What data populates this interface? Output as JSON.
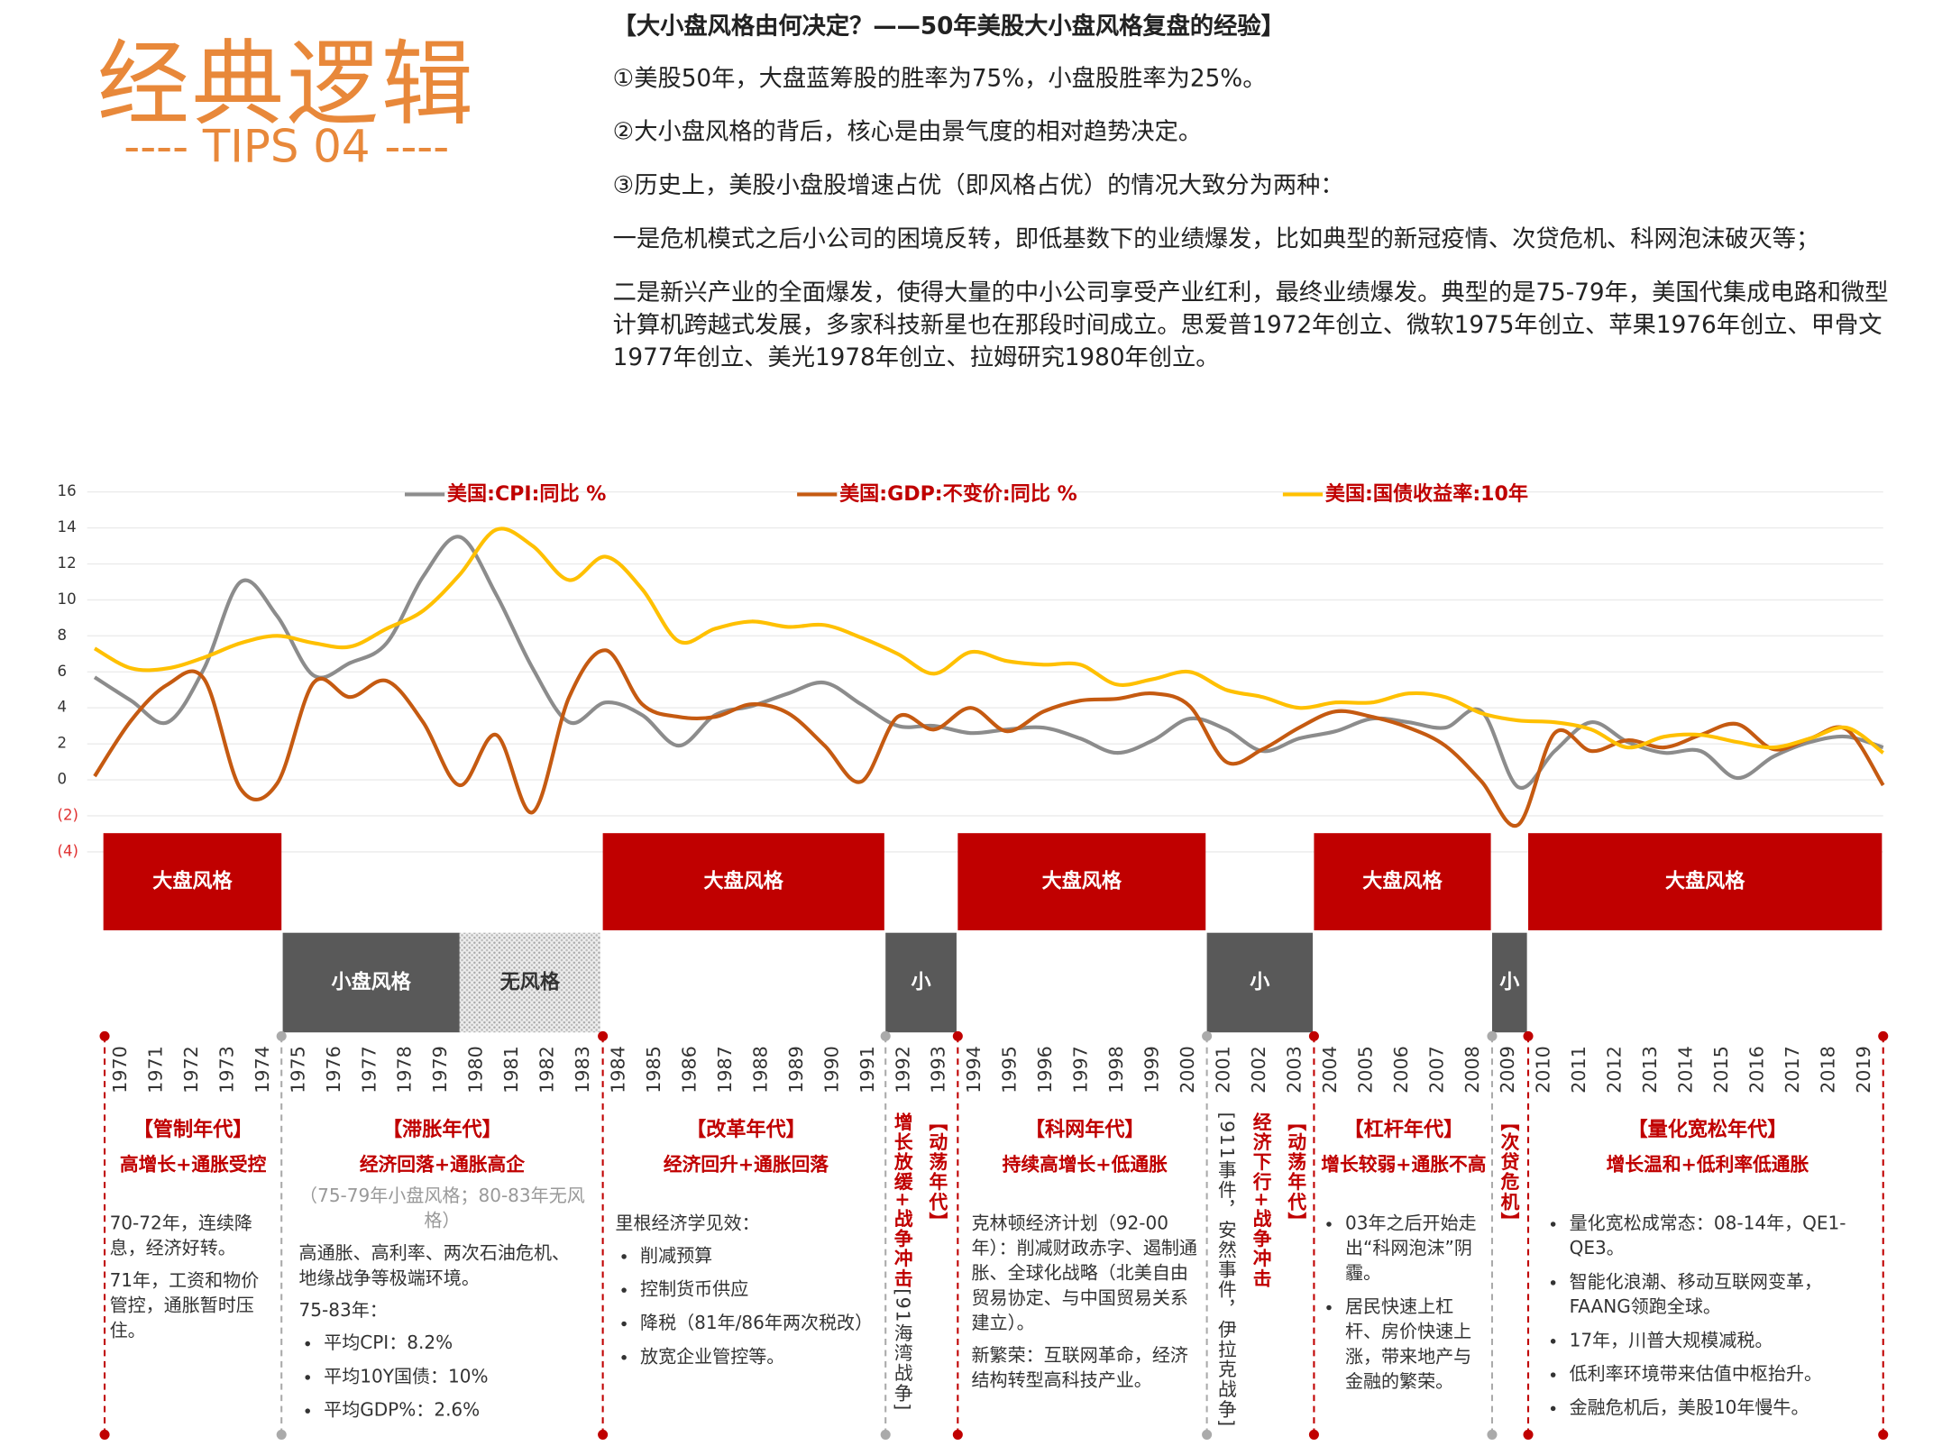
{
  "header": {
    "title": "经典逻辑",
    "subtitle": "---- TIPS 04 ----"
  },
  "article": {
    "heading": "【大小盘风格由何决定？——50年美股大小盘风格复盘的经验】",
    "paragraphs": [
      "①美股50年，大盘蓝筹股的胜率为75%，小盘股胜率为25%。",
      "②大小盘风格的背后，核心是由景气度的相对趋势决定。",
      "③历史上，美股小盘股增速占优（即风格占优）的情况大致分为两种：",
      "一是危机模式之后小公司的困境反转，即低基数下的业绩爆发，比如典型的新冠疫情、次贷危机、科网泡沫破灭等；",
      "二是新兴产业的全面爆发，使得大量的中小公司享受产业红利，最终业绩爆发。典型的是75-79年，美国代集成电路和微型计算机跨越式发展，多家科技新星也在那段时间成立。思爱普1972年创立、微软1975年创立、苹果1976年创立、甲骨文1977年创立、美光1978年创立、拉姆研究1980年创立。"
    ]
  },
  "chart_data": {
    "type": "line",
    "x": [
      1970,
      1971,
      1972,
      1973,
      1974,
      1975,
      1976,
      1977,
      1978,
      1979,
      1980,
      1981,
      1982,
      1983,
      1984,
      1985,
      1986,
      1987,
      1988,
      1989,
      1990,
      1991,
      1992,
      1993,
      1994,
      1995,
      1996,
      1997,
      1998,
      1999,
      2000,
      2001,
      2002,
      2003,
      2004,
      2005,
      2006,
      2007,
      2008,
      2009,
      2010,
      2011,
      2012,
      2013,
      2014,
      2015,
      2016,
      2017,
      2018,
      2019
    ],
    "xlim": [
      1970,
      2019
    ],
    "ylim": [
      -4,
      16
    ],
    "yticks": [
      16,
      14,
      12,
      10,
      8,
      6,
      4,
      2,
      0,
      {
        "value": -2,
        "label": "(2)"
      },
      {
        "value": -4,
        "label": "(4)"
      }
    ],
    "grid": true,
    "legend": "top",
    "series": [
      {
        "name": "美国:CPI:同比 %",
        "color": "#8c8c8c",
        "values": [
          5.7,
          4.4,
          3.2,
          6.2,
          11.0,
          9.1,
          5.8,
          6.5,
          7.6,
          11.3,
          13.5,
          10.3,
          6.2,
          3.2,
          4.3,
          3.6,
          1.9,
          3.6,
          4.1,
          4.8,
          5.4,
          4.2,
          3.0,
          3.0,
          2.6,
          2.8,
          2.9,
          2.3,
          1.5,
          2.2,
          3.4,
          2.8,
          1.6,
          2.3,
          2.7,
          3.4,
          3.2,
          2.9,
          3.8,
          -0.4,
          1.6,
          3.2,
          2.1,
          1.5,
          1.6,
          0.1,
          1.3,
          2.1,
          2.4,
          1.8
        ]
      },
      {
        "name": "美国:GDP:不变价:同比 %",
        "color": "#c55a11",
        "values": [
          0.2,
          3.3,
          5.3,
          5.6,
          -0.5,
          -0.2,
          5.4,
          4.6,
          5.5,
          3.2,
          -0.3,
          2.5,
          -1.8,
          4.6,
          7.2,
          4.2,
          3.5,
          3.5,
          4.2,
          3.7,
          1.9,
          -0.1,
          3.5,
          2.8,
          4.0,
          2.7,
          3.8,
          4.4,
          4.5,
          4.8,
          4.1,
          1.0,
          1.7,
          2.9,
          3.8,
          3.5,
          2.9,
          1.9,
          -0.1,
          -2.5,
          2.6,
          1.6,
          2.2,
          1.8,
          2.5,
          3.1,
          1.7,
          2.3,
          2.8,
          -0.3
        ]
      },
      {
        "name": "美国:国债收益率:10年",
        "color": "#ffc000",
        "values": [
          7.3,
          6.2,
          6.2,
          6.8,
          7.6,
          8.0,
          7.6,
          7.4,
          8.4,
          9.4,
          11.4,
          13.9,
          13.0,
          11.1,
          12.4,
          10.6,
          7.7,
          8.4,
          8.8,
          8.5,
          8.6,
          7.9,
          7.0,
          5.9,
          7.1,
          6.6,
          6.4,
          6.4,
          5.3,
          5.6,
          6.0,
          5.0,
          4.6,
          4.0,
          4.3,
          4.3,
          4.8,
          4.6,
          3.7,
          3.3,
          3.2,
          2.8,
          1.8,
          2.4,
          2.5,
          2.1,
          1.8,
          2.3,
          2.9,
          1.5
        ]
      }
    ]
  },
  "timeline": {
    "blocks": [
      "大盘风格",
      "小盘风格",
      "无风格",
      "大盘风格",
      "小",
      "大盘风格",
      "小",
      "大盘风格",
      "小",
      "大盘风格"
    ],
    "years": [
      "1970",
      "1971",
      "1972",
      "1973",
      "1974",
      "1975",
      "1976",
      "1977",
      "1978",
      "1979",
      "1980",
      "1981",
      "1982",
      "1983",
      "1984",
      "1985",
      "1986",
      "1987",
      "1988",
      "1989",
      "1990",
      "1991",
      "1992",
      "1993",
      "1994",
      "1995",
      "1996",
      "1997",
      "1998",
      "1999",
      "2000",
      "2001",
      "2002",
      "2003",
      "2004",
      "2005",
      "2006",
      "2007",
      "2008",
      "2009",
      "2010",
      "2011",
      "2012",
      "2013",
      "2014",
      "2015",
      "2016",
      "2017",
      "2018",
      "2019"
    ],
    "eras": [
      {
        "title": "【管制年代】",
        "subtitle": "高增长+通胀受控",
        "paragraphs": [
          "70-72年，连续降息，经济好转。",
          "71年，工资和物价管控，通胀暂时压住。"
        ]
      },
      {
        "title": "【滞胀年代】",
        "subtitle": "经济回落+通胀高企",
        "note": "（75-79年小盘风格；80-83年无风格）",
        "paragraphs": [
          "高通胀、高利率、两次石油危机、地缘战争等极端环境。",
          "75-83年："
        ],
        "bullets": [
          "平均CPI：8.2%",
          "平均10Y国债：10%",
          "平均GDP%：2.6%"
        ]
      },
      {
        "title": "【改革年代】",
        "subtitle": "经济回升+通胀回落",
        "paragraphs": [
          "里根经济学见效："
        ],
        "bullets": [
          "削减预算",
          "控制货币供应",
          "降税（81年/86年两次税改）",
          "放宽企业管控等。"
        ]
      },
      {
        "title": "【动荡年代】",
        "subtitle": "增长放缓+战争冲击",
        "note": "[91海湾战争]"
      },
      {
        "title": "【科网年代】",
        "subtitle": "持续高增长+低通胀",
        "paragraphs": [
          "克林顿经济计划（92-00年）：削减财政赤字、遏制通胀、全球化战略（北美自由贸易协定、与中国贸易关系建立）。",
          "新繁荣：互联网革命，经济结构转型高科技产业。"
        ]
      },
      {
        "title": "【动荡年代】",
        "subtitle": "经济下行+战争冲击",
        "note": "[911事件，安然事件，伊拉克战争]"
      },
      {
        "title": "【杠杆年代】",
        "subtitle": "增长较弱+通胀不高",
        "bullets": [
          "03年之后开始走出“科网泡沫”阴霾。",
          "居民快速上杠杆、房价快速上涨，带来地产与金融的繁荣。"
        ]
      },
      {
        "title": "【次贷危机】"
      },
      {
        "title": "【量化宽松年代】",
        "subtitle": "增长温和+低利率低通胀",
        "bullets": [
          "量化宽松成常态：08-14年，QE1-QE3。",
          "智能化浪潮、移动互联网变革，FAANG领跑全球。",
          "17年，川普大规模减税。",
          "低利率环境带来估值中枢抬升。",
          "金融危机后，美股10年慢牛。"
        ]
      }
    ]
  }
}
